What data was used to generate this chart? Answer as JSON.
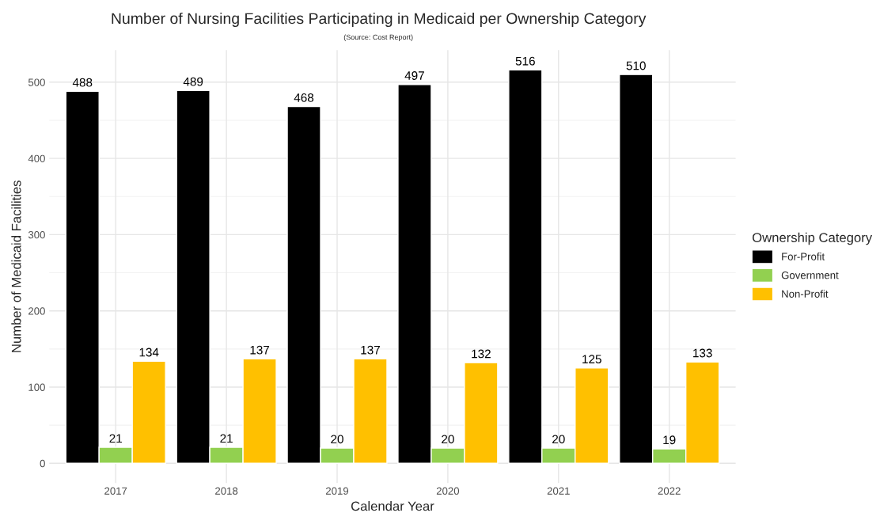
{
  "chart_data": {
    "type": "bar",
    "title": "Number of Nursing Facilities Participating in Medicaid per Ownership Category",
    "subtitle": "(Source: Cost Report)",
    "xlabel": "Calendar Year",
    "ylabel": "Number of Medicaid Facilities",
    "legend_title": "Ownership Category",
    "categories": [
      "2017",
      "2018",
      "2019",
      "2020",
      "2021",
      "2022"
    ],
    "series": [
      {
        "name": "For-Profit",
        "color": "#000000",
        "values": [
          488,
          489,
          468,
          497,
          516,
          510
        ]
      },
      {
        "name": "Government",
        "color": "#92d050",
        "values": [
          21,
          21,
          20,
          20,
          20,
          19
        ]
      },
      {
        "name": "Non-Profit",
        "color": "#ffc000",
        "values": [
          134,
          137,
          137,
          132,
          125,
          133
        ]
      }
    ],
    "ylim": [
      -26,
      542
    ],
    "yticks": [
      0,
      100,
      200,
      300,
      400,
      500
    ],
    "grid": true,
    "legend": "right",
    "data_labels": true
  }
}
